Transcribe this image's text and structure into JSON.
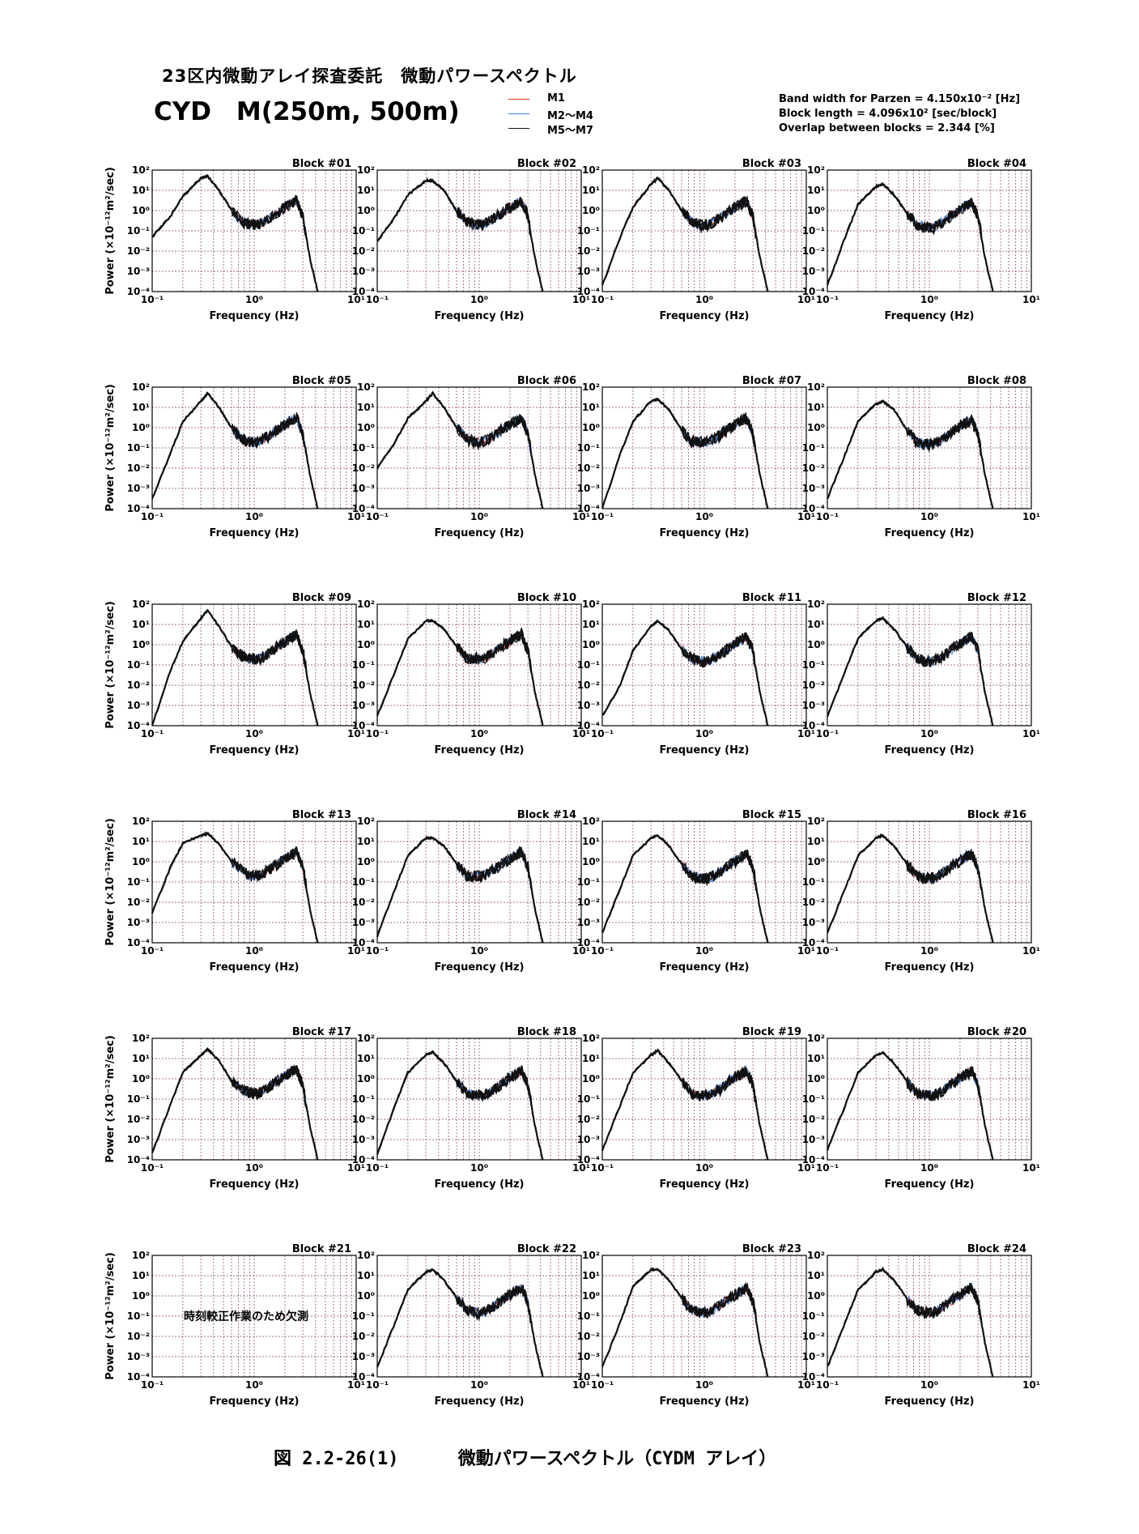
{
  "header": {
    "title": "23区内微動アレイ探査委託　微動パワースペクトル",
    "subtitle": "CYD　M(250m, 500m)"
  },
  "legend": [
    {
      "name": "M1",
      "color": "#e0302a"
    },
    {
      "name": "M2～M4",
      "color": "#3b7fd6"
    },
    {
      "name": "M5～M7",
      "color": "#111111"
    }
  ],
  "params": {
    "bandwidth": "Band width for Parzen = 4.150x10⁻² [Hz]",
    "block_length": "Block length = 4.096x10² [sec/block]",
    "overlap": "Overlap between blocks = 2.344 [%]"
  },
  "axes": {
    "xlabel": "Frequency (Hz)",
    "ylabel": "Power (×10⁻¹²m²/sec)",
    "xlim": [
      0.1,
      10
    ],
    "ylim": [
      0.0001,
      100
    ],
    "xscale": "log",
    "yscale": "log",
    "x_ticks": [
      "10⁻¹",
      "10⁰",
      "10¹"
    ],
    "y_ticks": [
      "10²",
      "10¹",
      "10⁰",
      "10⁻¹",
      "10⁻²",
      "10⁻³",
      "10⁻⁴"
    ],
    "grid": true
  },
  "chart_data": {
    "type": "line",
    "rows": 6,
    "cols": 4,
    "colors": {
      "M1": "#e0302a",
      "M2～M4": "#3b7fd6",
      "M5～M7": "#111111"
    },
    "blocks": [
      {
        "title": "Block #01",
        "x": [
          0.1,
          0.15,
          0.2,
          0.3,
          0.35,
          0.45,
          0.6,
          0.75,
          0.9,
          1.1,
          1.4,
          1.8,
          2.2,
          2.6,
          3.0,
          3.5,
          4.2
        ],
        "y": [
          0.05,
          0.5,
          5,
          40,
          50,
          10,
          1.0,
          0.3,
          0.2,
          0.2,
          0.4,
          1.0,
          2.0,
          3.0,
          0.5,
          0.005,
          0.0001
        ]
      },
      {
        "title": "Block #02",
        "x": [
          0.1,
          0.15,
          0.2,
          0.3,
          0.35,
          0.45,
          0.6,
          0.75,
          0.9,
          1.1,
          1.4,
          1.8,
          2.2,
          2.6,
          3.0,
          3.5,
          4.2
        ],
        "y": [
          0.03,
          0.5,
          6,
          30,
          30,
          10,
          1.0,
          0.3,
          0.2,
          0.2,
          0.4,
          1.0,
          2.0,
          3.0,
          0.5,
          0.005,
          0.0001
        ]
      },
      {
        "title": "Block #03",
        "x": [
          0.1,
          0.15,
          0.2,
          0.3,
          0.35,
          0.45,
          0.6,
          0.75,
          0.9,
          1.1,
          1.4,
          1.8,
          2.2,
          2.6,
          3.0,
          3.5,
          4.2
        ],
        "y": [
          0.0002,
          0.05,
          1.5,
          20,
          40,
          10,
          1.0,
          0.3,
          0.2,
          0.2,
          0.4,
          1.0,
          2.0,
          3.0,
          0.5,
          0.005,
          0.0001
        ]
      },
      {
        "title": "Block #04",
        "x": [
          0.1,
          0.15,
          0.2,
          0.3,
          0.35,
          0.45,
          0.6,
          0.75,
          0.9,
          1.1,
          1.4,
          1.8,
          2.2,
          2.6,
          3.0,
          3.5,
          4.2
        ],
        "y": [
          0.0002,
          0.05,
          2,
          15,
          20,
          6,
          0.8,
          0.2,
          0.15,
          0.15,
          0.3,
          0.8,
          1.5,
          2.5,
          0.5,
          0.005,
          0.0001
        ]
      },
      {
        "title": "Block #05",
        "x": [
          0.1,
          0.15,
          0.2,
          0.3,
          0.35,
          0.45,
          0.6,
          0.75,
          0.9,
          1.1,
          1.4,
          1.8,
          2.2,
          2.6,
          3.0,
          3.5,
          4.2
        ],
        "y": [
          0.0003,
          0.05,
          2,
          20,
          50,
          10,
          1.0,
          0.3,
          0.2,
          0.2,
          0.4,
          1.0,
          2.0,
          3.0,
          0.5,
          0.005,
          0.0001
        ]
      },
      {
        "title": "Block #06",
        "x": [
          0.1,
          0.15,
          0.2,
          0.3,
          0.35,
          0.45,
          0.6,
          0.75,
          0.9,
          1.1,
          1.4,
          1.8,
          2.2,
          2.6,
          3.0,
          3.5,
          4.2
        ],
        "y": [
          0.01,
          0.2,
          3,
          20,
          50,
          10,
          1.0,
          0.3,
          0.2,
          0.2,
          0.4,
          1.0,
          2.0,
          3.0,
          0.5,
          0.005,
          0.0001
        ]
      },
      {
        "title": "Block #07",
        "x": [
          0.1,
          0.15,
          0.2,
          0.3,
          0.35,
          0.45,
          0.6,
          0.75,
          0.9,
          1.1,
          1.4,
          1.8,
          2.2,
          2.6,
          3.0,
          3.5,
          4.2
        ],
        "y": [
          0.0001,
          0.05,
          2,
          20,
          25,
          8,
          0.8,
          0.2,
          0.2,
          0.2,
          0.4,
          1.0,
          2.0,
          3.0,
          0.5,
          0.005,
          0.0001
        ]
      },
      {
        "title": "Block #08",
        "x": [
          0.1,
          0.15,
          0.2,
          0.3,
          0.35,
          0.45,
          0.6,
          0.75,
          0.9,
          1.1,
          1.4,
          1.8,
          2.2,
          2.6,
          3.0,
          3.5,
          4.2
        ],
        "y": [
          0.0003,
          0.05,
          2,
          15,
          20,
          8,
          0.8,
          0.2,
          0.15,
          0.15,
          0.3,
          0.8,
          1.5,
          2.5,
          0.5,
          0.005,
          0.0001
        ]
      },
      {
        "title": "Block #09",
        "x": [
          0.1,
          0.15,
          0.2,
          0.3,
          0.35,
          0.45,
          0.6,
          0.75,
          0.9,
          1.1,
          1.4,
          1.8,
          2.2,
          2.6,
          3.0,
          3.5,
          4.2
        ],
        "y": [
          0.0001,
          0.05,
          1.5,
          20,
          50,
          8,
          0.8,
          0.3,
          0.2,
          0.2,
          0.4,
          1.0,
          2.0,
          3.0,
          0.5,
          0.005,
          0.0001
        ]
      },
      {
        "title": "Block #10",
        "x": [
          0.1,
          0.15,
          0.2,
          0.3,
          0.35,
          0.45,
          0.6,
          0.75,
          0.9,
          1.1,
          1.4,
          1.8,
          2.2,
          2.6,
          3.0,
          3.5,
          4.2
        ],
        "y": [
          0.0003,
          0.05,
          2,
          15,
          15,
          6,
          0.8,
          0.2,
          0.2,
          0.2,
          0.4,
          1.0,
          2.0,
          3.0,
          0.5,
          0.005,
          0.0001
        ]
      },
      {
        "title": "Block #11",
        "x": [
          0.1,
          0.15,
          0.2,
          0.3,
          0.35,
          0.45,
          0.6,
          0.75,
          0.9,
          1.1,
          1.4,
          1.8,
          2.2,
          2.6,
          3.0,
          3.5,
          4.2
        ],
        "y": [
          0.0003,
          0.01,
          0.5,
          8,
          15,
          5,
          0.6,
          0.2,
          0.15,
          0.15,
          0.3,
          0.8,
          1.5,
          2.5,
          0.5,
          0.005,
          0.0001
        ]
      },
      {
        "title": "Block #12",
        "x": [
          0.1,
          0.15,
          0.2,
          0.3,
          0.35,
          0.45,
          0.6,
          0.75,
          0.9,
          1.1,
          1.4,
          1.8,
          2.2,
          2.6,
          3.0,
          3.5,
          4.2
        ],
        "y": [
          0.0003,
          0.05,
          2,
          15,
          20,
          6,
          0.8,
          0.2,
          0.15,
          0.15,
          0.3,
          0.8,
          1.5,
          2.5,
          0.5,
          0.005,
          0.0001
        ]
      },
      {
        "title": "Block #13",
        "x": [
          0.1,
          0.15,
          0.2,
          0.3,
          0.35,
          0.45,
          0.6,
          0.75,
          0.9,
          1.1,
          1.4,
          1.8,
          2.2,
          2.6,
          3.0,
          3.5,
          4.2
        ],
        "y": [
          0.003,
          0.5,
          8,
          20,
          25,
          8,
          1.0,
          0.4,
          0.2,
          0.2,
          0.4,
          1.0,
          2.0,
          3.0,
          0.5,
          0.005,
          0.0001
        ]
      },
      {
        "title": "Block #14",
        "x": [
          0.1,
          0.15,
          0.2,
          0.3,
          0.35,
          0.45,
          0.6,
          0.75,
          0.9,
          1.1,
          1.4,
          1.8,
          2.2,
          2.6,
          3.0,
          3.5,
          4.2
        ],
        "y": [
          0.0002,
          0.05,
          2,
          15,
          15,
          6,
          0.8,
          0.2,
          0.2,
          0.2,
          0.4,
          1.0,
          2.0,
          3.0,
          0.5,
          0.005,
          0.0001
        ]
      },
      {
        "title": "Block #15",
        "x": [
          0.1,
          0.15,
          0.2,
          0.3,
          0.35,
          0.45,
          0.6,
          0.75,
          0.9,
          1.1,
          1.4,
          1.8,
          2.2,
          2.6,
          3.0,
          3.5,
          4.2
        ],
        "y": [
          0.0003,
          0.05,
          2,
          15,
          20,
          6,
          0.8,
          0.2,
          0.15,
          0.15,
          0.3,
          0.8,
          1.5,
          2.5,
          0.5,
          0.005,
          0.0001
        ]
      },
      {
        "title": "Block #16",
        "x": [
          0.1,
          0.15,
          0.2,
          0.3,
          0.35,
          0.45,
          0.6,
          0.75,
          0.9,
          1.1,
          1.4,
          1.8,
          2.2,
          2.6,
          3.0,
          3.5,
          4.2
        ],
        "y": [
          0.0003,
          0.05,
          2,
          15,
          20,
          6,
          0.8,
          0.2,
          0.15,
          0.15,
          0.3,
          0.8,
          1.5,
          2.5,
          0.5,
          0.005,
          0.0001
        ]
      },
      {
        "title": "Block #17",
        "x": [
          0.1,
          0.15,
          0.2,
          0.3,
          0.35,
          0.45,
          0.6,
          0.75,
          0.9,
          1.1,
          1.4,
          1.8,
          2.2,
          2.6,
          3.0,
          3.5,
          4.2
        ],
        "y": [
          0.0002,
          0.05,
          2,
          15,
          30,
          8,
          0.8,
          0.3,
          0.2,
          0.2,
          0.4,
          1.0,
          2.0,
          3.0,
          0.5,
          0.005,
          0.0001
        ]
      },
      {
        "title": "Block #18",
        "x": [
          0.1,
          0.15,
          0.2,
          0.3,
          0.35,
          0.45,
          0.6,
          0.75,
          0.9,
          1.1,
          1.4,
          1.8,
          2.2,
          2.6,
          3.0,
          3.5,
          4.2
        ],
        "y": [
          0.0002,
          0.05,
          2,
          15,
          20,
          6,
          0.8,
          0.2,
          0.15,
          0.15,
          0.3,
          0.8,
          1.5,
          2.5,
          0.5,
          0.005,
          0.0001
        ]
      },
      {
        "title": "Block #19",
        "x": [
          0.1,
          0.15,
          0.2,
          0.3,
          0.35,
          0.45,
          0.6,
          0.75,
          0.9,
          1.1,
          1.4,
          1.8,
          2.2,
          2.6,
          3.0,
          3.5,
          4.2
        ],
        "y": [
          0.0003,
          0.05,
          2,
          15,
          25,
          6,
          0.8,
          0.2,
          0.15,
          0.15,
          0.3,
          0.8,
          1.5,
          2.5,
          0.5,
          0.005,
          0.0001
        ]
      },
      {
        "title": "Block #20",
        "x": [
          0.1,
          0.15,
          0.2,
          0.3,
          0.35,
          0.45,
          0.6,
          0.75,
          0.9,
          1.1,
          1.4,
          1.8,
          2.2,
          2.6,
          3.0,
          3.5,
          4.2
        ],
        "y": [
          0.0003,
          0.05,
          2,
          15,
          20,
          6,
          0.8,
          0.2,
          0.15,
          0.15,
          0.3,
          0.8,
          1.5,
          2.5,
          0.5,
          0.005,
          0.0001
        ]
      },
      {
        "title": "Block #21",
        "note": "時刻較正作業のため欠測",
        "x": [],
        "y": []
      },
      {
        "title": "Block #22",
        "x": [
          0.1,
          0.15,
          0.2,
          0.3,
          0.35,
          0.45,
          0.6,
          0.75,
          0.9,
          1.1,
          1.4,
          1.8,
          2.2,
          2.6,
          3.0,
          3.5,
          4.2
        ],
        "y": [
          0.0003,
          0.05,
          2,
          15,
          20,
          6,
          0.8,
          0.2,
          0.15,
          0.15,
          0.3,
          0.8,
          1.5,
          2.5,
          0.5,
          0.005,
          0.0001
        ]
      },
      {
        "title": "Block #23",
        "x": [
          0.1,
          0.15,
          0.2,
          0.3,
          0.35,
          0.45,
          0.6,
          0.75,
          0.9,
          1.1,
          1.4,
          1.8,
          2.2,
          2.6,
          3.0,
          3.5,
          4.2
        ],
        "y": [
          0.0003,
          0.05,
          3,
          20,
          20,
          6,
          0.8,
          0.2,
          0.15,
          0.15,
          0.3,
          0.8,
          1.5,
          2.5,
          0.5,
          0.005,
          0.0001
        ]
      },
      {
        "title": "Block #24",
        "x": [
          0.1,
          0.15,
          0.2,
          0.3,
          0.35,
          0.45,
          0.6,
          0.75,
          0.9,
          1.1,
          1.4,
          1.8,
          2.2,
          2.6,
          3.0,
          3.5,
          4.2
        ],
        "y": [
          0.0003,
          0.05,
          2,
          15,
          20,
          6,
          0.8,
          0.2,
          0.15,
          0.15,
          0.3,
          0.8,
          1.5,
          2.5,
          0.5,
          0.005,
          0.0001
        ]
      }
    ]
  },
  "caption": {
    "number": "図 2.2-26(1)",
    "text": "微動パワースペクトル（CYDM アレイ）"
  }
}
